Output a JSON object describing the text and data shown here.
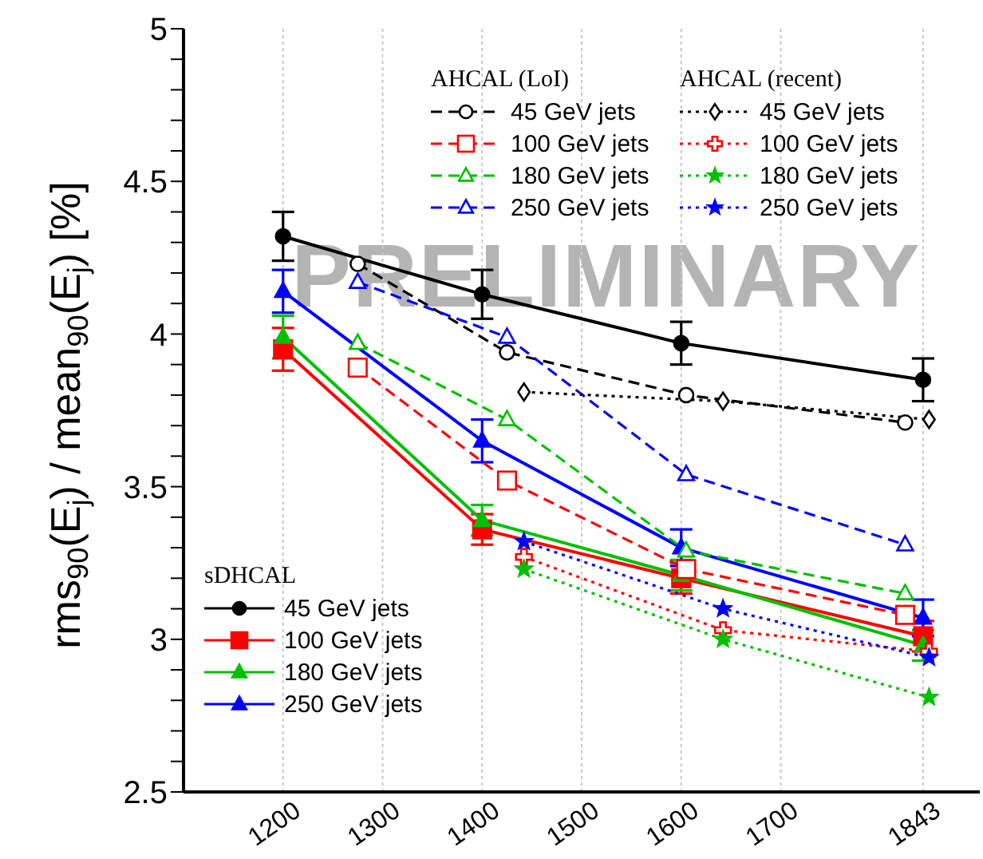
{
  "chart_data": {
    "type": "line",
    "ylabel": "rms$_{90}$(E$_{j}$) / mean$_{90}$(E$_{j}$) [%]",
    "annotations": [
      "sDHCAL",
      "AHCAL (LoI)",
      "AHCAL (recent)",
      "PRELIMINARY"
    ],
    "xlim": [
      1100,
      1900
    ],
    "xticks": [
      1200,
      1300,
      1400,
      1500,
      1600,
      1700,
      1843
    ],
    "ylim": [
      2.5,
      5
    ],
    "yticks": [
      2.5,
      {
        "value": 2.6,
        "label": null
      },
      {
        "value": 2.7,
        "label": null
      },
      {
        "value": 2.8,
        "label": null
      },
      {
        "value": 2.9,
        "label": null
      },
      3,
      {
        "value": 3.1,
        "label": null
      },
      {
        "value": 3.2,
        "label": null
      },
      {
        "value": 3.3,
        "label": null
      },
      {
        "value": 3.4,
        "label": null
      },
      3.5,
      {
        "value": 3.6,
        "label": null
      },
      {
        "value": 3.7,
        "label": null
      },
      {
        "value": 3.8,
        "label": null
      },
      {
        "value": 3.9,
        "label": null
      },
      4,
      {
        "value": 4.1,
        "label": null
      },
      {
        "value": 4.2,
        "label": null
      },
      {
        "value": 4.3,
        "label": null
      },
      {
        "value": 4.4,
        "label": null
      },
      4.5,
      {
        "value": 4.6,
        "label": null
      },
      {
        "value": 4.7,
        "label": null
      },
      {
        "value": 4.8,
        "label": null
      },
      {
        "value": 4.9,
        "label": null
      },
      5
    ],
    "grid": "x",
    "legend": "top right",
    "series": [
      {
        "name": "45 GeV jets",
        "color": "#000000",
        "marker": "circle",
        "line_style": "solid",
        "x": [
          1200,
          1400,
          1600,
          1843
        ],
        "values": [
          4.32,
          4.13,
          3.97,
          3.85
        ],
        "errors": [
          0.08,
          0.08,
          0.07,
          0.07
        ]
      },
      {
        "name": "100 GeV jets",
        "color": "#ff0000",
        "marker": "square",
        "line_style": "solid",
        "x": [
          1200,
          1400,
          1600,
          1843
        ],
        "values": [
          3.95,
          3.36,
          3.2,
          3.01
        ],
        "errors": [
          0.07,
          0.05,
          0.05,
          0.05
        ]
      },
      {
        "name": "180 GeV jets",
        "color": "#00c000",
        "marker": "triangle",
        "line_style": "solid",
        "x": [
          1200,
          1400,
          1600,
          1843
        ],
        "values": [
          3.99,
          3.39,
          3.21,
          2.98
        ],
        "errors": [
          0.07,
          0.05,
          0.05,
          0.05
        ]
      },
      {
        "name": "250 GeV jets",
        "color": "#0000ff",
        "marker": "triangle",
        "line_style": "solid",
        "x": [
          1200,
          1400,
          1600,
          1843
        ],
        "values": [
          4.14,
          3.65,
          3.3,
          3.07
        ],
        "errors": [
          0.07,
          0.07,
          0.06,
          0.06
        ]
      },
      {
        "name": "45 GeV jets",
        "color": "#000000",
        "marker": "circle",
        "line_style": "dashed",
        "x": [
          1275,
          1425,
          1605,
          1825
        ],
        "values": [
          4.23,
          3.94,
          3.8,
          3.71
        ]
      },
      {
        "name": "100 GeV jets",
        "color": "#ff0000",
        "marker": "square",
        "line_style": "dashed",
        "x": [
          1275,
          1425,
          1605,
          1825
        ],
        "values": [
          3.89,
          3.52,
          3.23,
          3.08
        ]
      },
      {
        "name": "180 GeV jets",
        "color": "#00c000",
        "marker": "triangle",
        "line_style": "dashed",
        "x": [
          1275,
          1425,
          1605,
          1825
        ],
        "values": [
          3.97,
          3.72,
          3.29,
          3.15
        ]
      },
      {
        "name": "250 GeV jets",
        "color": "#0000ff",
        "marker": "triangle",
        "line_style": "dashed",
        "x": [
          1275,
          1425,
          1605,
          1825
        ],
        "values": [
          4.17,
          3.99,
          3.54,
          3.31
        ]
      },
      {
        "name": "45 GeV jets",
        "color": "#000000",
        "marker": "diamond",
        "line_style": "dotted",
        "x": [
          1442,
          1642,
          1849
        ],
        "values": [
          3.81,
          3.78,
          3.72
        ]
      },
      {
        "name": "100 GeV jets",
        "color": "#ff0000",
        "marker": "cross",
        "line_style": "dotted",
        "x": [
          1442,
          1642,
          1849
        ],
        "values": [
          3.27,
          3.03,
          2.96
        ]
      },
      {
        "name": "180 GeV jets",
        "color": "#00c000",
        "marker": "star",
        "line_style": "dotted",
        "x": [
          1442,
          1642,
          1849
        ],
        "values": [
          3.23,
          3.0,
          2.81
        ]
      },
      {
        "name": "250 GeV jets",
        "color": "#0000ff",
        "marker": "star",
        "line_style": "dotted",
        "x": [
          1442,
          1642,
          1849
        ],
        "values": [
          3.32,
          3.1,
          2.94
        ]
      }
    ]
  }
}
